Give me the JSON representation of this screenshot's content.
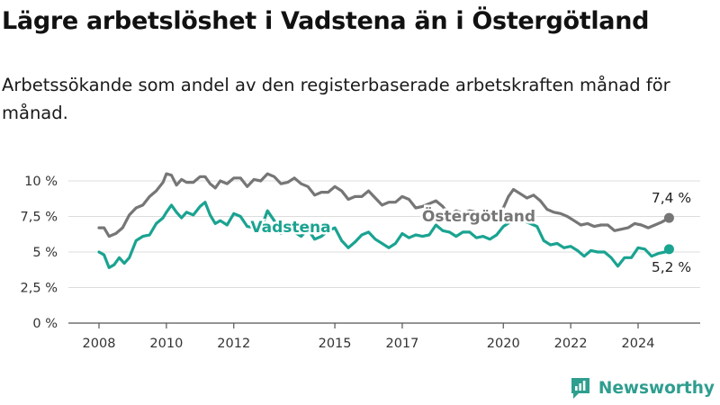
{
  "header": {
    "title": "Lägre arbetslöshet i Vadstena än i Östergötland",
    "subtitle": "Arbetssökande som andel av den registerbaserade arbetskraften månad för månad."
  },
  "brand": {
    "name": "Newsworthy",
    "icon": "newsworthy-logo-icon"
  },
  "colors": {
    "vadstena": "#1aa391",
    "ostergotland": "#767676",
    "grid": "#dcdcdc",
    "axis": "#555555"
  },
  "chart_data": {
    "type": "line",
    "title": "Lägre arbetslöshet i Vadstena än i Östergötland",
    "subtitle": "Arbetssökande som andel av den registerbaserade arbetskraften månad för månad.",
    "x_unit": "year (monthly data)",
    "xlim": [
      2008.0,
      2024.92
    ],
    "ylim": [
      0,
      10
    ],
    "y_ticks": [
      0,
      2.5,
      5,
      7.5,
      10
    ],
    "y_tick_labels": [
      "0 %",
      "2,5 %",
      "5 %",
      "7,5 %",
      "10 %"
    ],
    "x_ticks": [
      2008,
      2010,
      2012,
      2015,
      2017,
      2020,
      2022,
      2024
    ],
    "x_tick_labels": [
      "2008",
      "2010",
      "2012",
      "2015",
      "2017",
      "2020",
      "2022",
      "2024"
    ],
    "grid": "horizontal",
    "legend": "direct labels on lines",
    "series": [
      {
        "name": "Östergötland",
        "color": "#767676",
        "end_label": "7,4 %",
        "points": [
          [
            2008.0,
            6.7
          ],
          [
            2008.15,
            6.7
          ],
          [
            2008.3,
            6.1
          ],
          [
            2008.5,
            6.3
          ],
          [
            2008.7,
            6.7
          ],
          [
            2008.9,
            7.6
          ],
          [
            2009.1,
            8.1
          ],
          [
            2009.3,
            8.3
          ],
          [
            2009.5,
            8.9
          ],
          [
            2009.7,
            9.3
          ],
          [
            2009.9,
            9.9
          ],
          [
            2010.0,
            10.5
          ],
          [
            2010.15,
            10.4
          ],
          [
            2010.3,
            9.7
          ],
          [
            2010.45,
            10.1
          ],
          [
            2010.6,
            9.9
          ],
          [
            2010.8,
            9.9
          ],
          [
            2011.0,
            10.3
          ],
          [
            2011.15,
            10.3
          ],
          [
            2011.3,
            9.8
          ],
          [
            2011.45,
            9.5
          ],
          [
            2011.6,
            10.0
          ],
          [
            2011.8,
            9.8
          ],
          [
            2012.0,
            10.2
          ],
          [
            2012.2,
            10.2
          ],
          [
            2012.4,
            9.6
          ],
          [
            2012.6,
            10.1
          ],
          [
            2012.8,
            10.0
          ],
          [
            2013.0,
            10.5
          ],
          [
            2013.2,
            10.3
          ],
          [
            2013.4,
            9.8
          ],
          [
            2013.6,
            9.9
          ],
          [
            2013.8,
            10.2
          ],
          [
            2014.0,
            9.8
          ],
          [
            2014.2,
            9.6
          ],
          [
            2014.4,
            9.0
          ],
          [
            2014.6,
            9.2
          ],
          [
            2014.8,
            9.2
          ],
          [
            2015.0,
            9.6
          ],
          [
            2015.2,
            9.3
          ],
          [
            2015.4,
            8.7
          ],
          [
            2015.6,
            8.9
          ],
          [
            2015.8,
            8.9
          ],
          [
            2016.0,
            9.3
          ],
          [
            2016.2,
            8.8
          ],
          [
            2016.4,
            8.3
          ],
          [
            2016.6,
            8.5
          ],
          [
            2016.8,
            8.5
          ],
          [
            2017.0,
            8.9
          ],
          [
            2017.2,
            8.7
          ],
          [
            2017.4,
            8.1
          ],
          [
            2017.6,
            8.2
          ],
          [
            2017.8,
            8.4
          ],
          [
            2018.0,
            8.6
          ],
          [
            2018.2,
            8.2
          ],
          [
            2018.4,
            7.6
          ],
          [
            2018.6,
            7.9
          ],
          [
            2018.8,
            7.7
          ],
          [
            2019.0,
            7.9
          ],
          [
            2019.2,
            7.8
          ],
          [
            2019.4,
            7.4
          ],
          [
            2019.6,
            7.6
          ],
          [
            2019.8,
            7.6
          ],
          [
            2020.0,
            8.1
          ],
          [
            2020.15,
            8.9
          ],
          [
            2020.3,
            9.4
          ],
          [
            2020.5,
            9.1
          ],
          [
            2020.7,
            8.8
          ],
          [
            2020.9,
            9.0
          ],
          [
            2021.1,
            8.6
          ],
          [
            2021.3,
            8.0
          ],
          [
            2021.5,
            7.8
          ],
          [
            2021.7,
            7.7
          ],
          [
            2021.9,
            7.5
          ],
          [
            2022.1,
            7.2
          ],
          [
            2022.3,
            6.9
          ],
          [
            2022.5,
            7.0
          ],
          [
            2022.7,
            6.8
          ],
          [
            2022.9,
            6.9
          ],
          [
            2023.1,
            6.9
          ],
          [
            2023.3,
            6.5
          ],
          [
            2023.5,
            6.6
          ],
          [
            2023.7,
            6.7
          ],
          [
            2023.9,
            7.0
          ],
          [
            2024.1,
            6.9
          ],
          [
            2024.3,
            6.7
          ],
          [
            2024.5,
            6.9
          ],
          [
            2024.7,
            7.1
          ],
          [
            2024.92,
            7.4
          ]
        ]
      },
      {
        "name": "Vadstena",
        "color": "#1aa391",
        "end_label": "5,2 %",
        "points": [
          [
            2008.0,
            5.0
          ],
          [
            2008.15,
            4.8
          ],
          [
            2008.3,
            3.9
          ],
          [
            2008.45,
            4.1
          ],
          [
            2008.6,
            4.6
          ],
          [
            2008.75,
            4.2
          ],
          [
            2008.9,
            4.6
          ],
          [
            2009.1,
            5.8
          ],
          [
            2009.3,
            6.1
          ],
          [
            2009.5,
            6.2
          ],
          [
            2009.7,
            7.0
          ],
          [
            2009.9,
            7.4
          ],
          [
            2010.0,
            7.8
          ],
          [
            2010.15,
            8.3
          ],
          [
            2010.3,
            7.8
          ],
          [
            2010.45,
            7.4
          ],
          [
            2010.6,
            7.8
          ],
          [
            2010.8,
            7.6
          ],
          [
            2011.0,
            8.2
          ],
          [
            2011.15,
            8.5
          ],
          [
            2011.3,
            7.6
          ],
          [
            2011.45,
            7.0
          ],
          [
            2011.6,
            7.2
          ],
          [
            2011.8,
            6.9
          ],
          [
            2012.0,
            7.7
          ],
          [
            2012.2,
            7.5
          ],
          [
            2012.4,
            6.8
          ],
          [
            2012.6,
            6.7
          ],
          [
            2012.8,
            6.6
          ],
          [
            2013.0,
            7.9
          ],
          [
            2013.2,
            7.2
          ],
          [
            2013.4,
            6.3
          ],
          [
            2013.6,
            6.6
          ],
          [
            2013.8,
            6.4
          ],
          [
            2014.0,
            6.1
          ],
          [
            2014.2,
            6.6
          ],
          [
            2014.4,
            5.9
          ],
          [
            2014.6,
            6.1
          ],
          [
            2014.8,
            6.5
          ],
          [
            2015.0,
            6.7
          ],
          [
            2015.2,
            5.8
          ],
          [
            2015.4,
            5.3
          ],
          [
            2015.6,
            5.7
          ],
          [
            2015.8,
            6.2
          ],
          [
            2016.0,
            6.4
          ],
          [
            2016.2,
            5.9
          ],
          [
            2016.4,
            5.6
          ],
          [
            2016.6,
            5.3
          ],
          [
            2016.8,
            5.6
          ],
          [
            2017.0,
            6.3
          ],
          [
            2017.2,
            6.0
          ],
          [
            2017.4,
            6.2
          ],
          [
            2017.6,
            6.1
          ],
          [
            2017.8,
            6.2
          ],
          [
            2018.0,
            6.9
          ],
          [
            2018.2,
            6.5
          ],
          [
            2018.4,
            6.4
          ],
          [
            2018.6,
            6.1
          ],
          [
            2018.8,
            6.4
          ],
          [
            2019.0,
            6.4
          ],
          [
            2019.2,
            6.0
          ],
          [
            2019.4,
            6.1
          ],
          [
            2019.6,
            5.9
          ],
          [
            2019.8,
            6.2
          ],
          [
            2020.0,
            6.8
          ],
          [
            2020.2,
            7.1
          ],
          [
            2020.4,
            7.3
          ],
          [
            2020.6,
            7.2
          ],
          [
            2020.8,
            7.0
          ],
          [
            2021.0,
            6.8
          ],
          [
            2021.2,
            5.8
          ],
          [
            2021.4,
            5.5
          ],
          [
            2021.6,
            5.6
          ],
          [
            2021.8,
            5.3
          ],
          [
            2022.0,
            5.4
          ],
          [
            2022.2,
            5.1
          ],
          [
            2022.4,
            4.7
          ],
          [
            2022.6,
            5.1
          ],
          [
            2022.8,
            5.0
          ],
          [
            2023.0,
            5.0
          ],
          [
            2023.2,
            4.6
          ],
          [
            2023.4,
            4.0
          ],
          [
            2023.6,
            4.6
          ],
          [
            2023.8,
            4.6
          ],
          [
            2024.0,
            5.3
          ],
          [
            2024.2,
            5.2
          ],
          [
            2024.4,
            4.7
          ],
          [
            2024.6,
            4.9
          ],
          [
            2024.8,
            5.0
          ],
          [
            2024.92,
            5.2
          ]
        ]
      }
    ]
  }
}
